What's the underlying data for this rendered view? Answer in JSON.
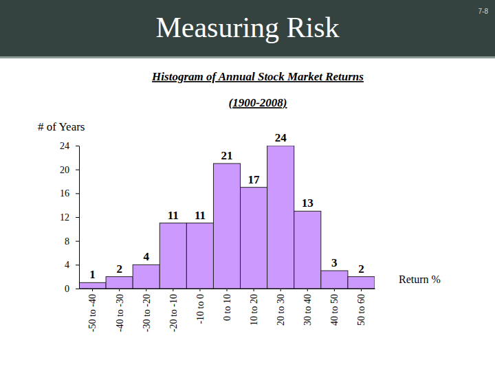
{
  "slide": {
    "title": "Measuring Risk",
    "page_number": "7-8"
  },
  "chart_data": {
    "type": "bar",
    "title": "Histogram of Annual Stock Market Returns",
    "subtitle": "(1900-2008)",
    "y_label": "# of Years",
    "x_label": "Return %",
    "categories": [
      "-50 to -40",
      "-40 to -30",
      "-30 to -20",
      "-20 to -10",
      "-10 to 0",
      "0 to 10",
      "10 to 20",
      "20 to 30",
      "30 to 40",
      "40 to 50",
      "50 to 60"
    ],
    "values": [
      1,
      2,
      4,
      11,
      11,
      21,
      17,
      24,
      13,
      3,
      2
    ],
    "color": "#cc99ff",
    "ylim": [
      0,
      24
    ],
    "yticks": [
      0,
      4,
      8,
      12,
      16,
      20,
      24
    ],
    "grid": false,
    "data_labels": true
  }
}
